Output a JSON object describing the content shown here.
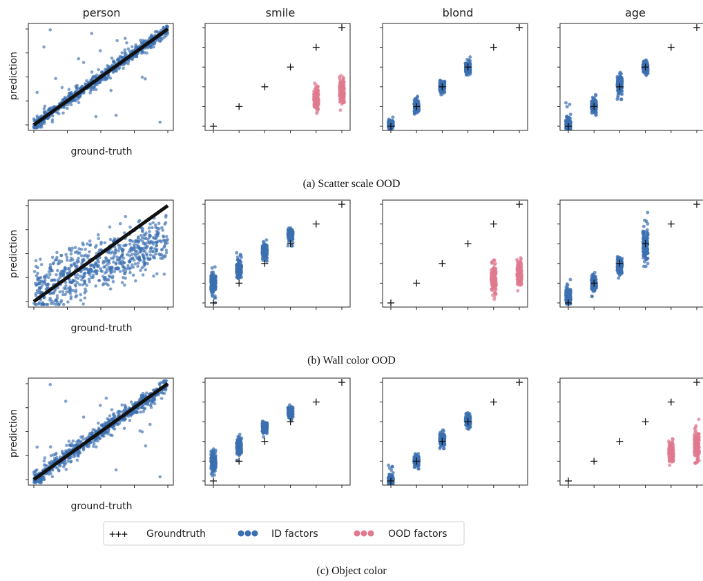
{
  "figure": {
    "column_titles": [
      "person",
      "smile",
      "blond",
      "age"
    ],
    "ylabel": "prediction",
    "xlabel": "ground-truth",
    "legend": [
      {
        "marker": "+++",
        "label": "Groundtruth",
        "color": "#111111"
      },
      {
        "marker": "dots",
        "label": "ID factors",
        "color": "#3a6fb0"
      },
      {
        "marker": "dots",
        "label": "OOD factors",
        "color": "#e0798f"
      }
    ],
    "colors": {
      "id": "#3a6fb0",
      "ood": "#e0798f",
      "groundtruth": "#111111"
    }
  },
  "chart_data": [
    {
      "type": "scatter",
      "caption": "(a) Scatter scale OOD",
      "panels": [
        {
          "title": "person",
          "kind": "continuous",
          "x_range": [
            0,
            1
          ],
          "y_range": [
            0,
            1
          ],
          "spread": "tight",
          "outliers": true
        },
        {
          "title": "smile",
          "kind": "discrete",
          "levels": [
            0,
            1,
            2,
            3,
            4,
            5
          ],
          "groundtruth": [
            0,
            1,
            2,
            3,
            4,
            5
          ],
          "clusters": [
            {
              "x": 4,
              "center": 1.4,
              "min": 0.65,
              "max": 2.6,
              "group": "ood"
            },
            {
              "x": 5,
              "center": 1.8,
              "min": 0.7,
              "max": 2.8,
              "group": "ood"
            }
          ]
        },
        {
          "title": "blond",
          "kind": "discrete",
          "levels": [
            0,
            1,
            2,
            3,
            4,
            5
          ],
          "groundtruth": [
            0,
            1,
            2,
            3,
            4,
            5
          ],
          "clusters": [
            {
              "x": 0,
              "center": 0.1,
              "min": -0.2,
              "max": 0.6,
              "group": "id"
            },
            {
              "x": 1,
              "center": 1.05,
              "min": 0.6,
              "max": 1.8,
              "group": "id"
            },
            {
              "x": 2,
              "center": 2.0,
              "min": 1.6,
              "max": 2.7,
              "group": "id"
            },
            {
              "x": 3,
              "center": 2.95,
              "min": 2.6,
              "max": 3.65,
              "group": "id"
            }
          ]
        },
        {
          "title": "age",
          "kind": "discrete",
          "levels": [
            0,
            1,
            2,
            3,
            4,
            5
          ],
          "groundtruth": [
            0,
            1,
            2,
            3,
            4,
            5
          ],
          "clusters": [
            {
              "x": 0,
              "center": 0.1,
              "min": -0.2,
              "max": 1.2,
              "group": "id"
            },
            {
              "x": 1,
              "center": 1.05,
              "min": 0.55,
              "max": 1.7,
              "group": "id"
            },
            {
              "x": 2,
              "center": 2.1,
              "min": 1.3,
              "max": 2.9,
              "group": "id"
            },
            {
              "x": 3,
              "center": 2.95,
              "min": 2.55,
              "max": 3.5,
              "group": "id"
            }
          ]
        }
      ]
    },
    {
      "type": "scatter",
      "caption": "(b) Wall color OOD",
      "panels": [
        {
          "title": "person",
          "kind": "continuous",
          "x_range": [
            0,
            1
          ],
          "y_range": [
            0,
            1
          ],
          "spread": "wide",
          "outliers": true
        },
        {
          "title": "smile",
          "kind": "discrete",
          "levels": [
            0,
            1,
            2,
            3,
            4,
            5
          ],
          "groundtruth": [
            0,
            1,
            2,
            3,
            4,
            5
          ],
          "clusters": [
            {
              "x": 0,
              "center": 1.0,
              "min": -0.1,
              "max": 1.9,
              "group": "id"
            },
            {
              "x": 1,
              "center": 1.75,
              "min": 1.0,
              "max": 2.55,
              "group": "id"
            },
            {
              "x": 2,
              "center": 2.65,
              "min": 2.1,
              "max": 3.35,
              "group": "id"
            },
            {
              "x": 3,
              "center": 3.45,
              "min": 2.85,
              "max": 3.85,
              "group": "id"
            }
          ]
        },
        {
          "title": "blond",
          "kind": "discrete",
          "levels": [
            0,
            1,
            2,
            3,
            4,
            5
          ],
          "groundtruth": [
            0,
            1,
            2,
            3,
            4,
            5
          ],
          "clusters": [
            {
              "x": 4,
              "center": 1.2,
              "min": 0.0,
              "max": 2.6,
              "group": "ood"
            },
            {
              "x": 5,
              "center": 1.5,
              "min": 0.5,
              "max": 2.6,
              "group": "ood"
            }
          ]
        },
        {
          "title": "age",
          "kind": "discrete",
          "levels": [
            0,
            1,
            2,
            3,
            4,
            5
          ],
          "groundtruth": [
            0,
            1,
            2,
            3,
            4,
            5
          ],
          "clusters": [
            {
              "x": 0,
              "center": 0.35,
              "min": -0.05,
              "max": 1.45,
              "group": "id"
            },
            {
              "x": 1,
              "center": 1.05,
              "min": 0.3,
              "max": 1.65,
              "group": "id"
            },
            {
              "x": 2,
              "center": 1.9,
              "min": 1.0,
              "max": 2.5,
              "group": "id"
            },
            {
              "x": 3,
              "center": 2.9,
              "min": 1.85,
              "max": 5.0,
              "group": "id"
            }
          ]
        }
      ]
    },
    {
      "type": "scatter",
      "caption": "(c) Object color",
      "panels": [
        {
          "title": "person",
          "kind": "continuous",
          "x_range": [
            0,
            1
          ],
          "y_range": [
            0,
            1
          ],
          "spread": "medium",
          "outliers": true
        },
        {
          "title": "smile",
          "kind": "discrete",
          "levels": [
            0,
            1,
            2,
            3,
            4,
            5
          ],
          "groundtruth": [
            0,
            1,
            2,
            3,
            4,
            5
          ],
          "clusters": [
            {
              "x": 0,
              "center": 1.0,
              "min": 0.1,
              "max": 1.8,
              "group": "id"
            },
            {
              "x": 1,
              "center": 1.8,
              "min": 1.0,
              "max": 2.55,
              "group": "id"
            },
            {
              "x": 2,
              "center": 2.7,
              "min": 2.2,
              "max": 3.3,
              "group": "id"
            },
            {
              "x": 3,
              "center": 3.5,
              "min": 2.95,
              "max": 3.85,
              "group": "id"
            }
          ]
        },
        {
          "title": "blond",
          "kind": "discrete",
          "levels": [
            0,
            1,
            2,
            3,
            4,
            5
          ],
          "groundtruth": [
            0,
            1,
            2,
            3,
            4,
            5
          ],
          "clusters": [
            {
              "x": 0,
              "center": 0.05,
              "min": -0.2,
              "max": 0.8,
              "group": "id"
            },
            {
              "x": 1,
              "center": 1.05,
              "min": 0.6,
              "max": 1.5,
              "group": "id"
            },
            {
              "x": 2,
              "center": 2.1,
              "min": 1.6,
              "max": 2.7,
              "group": "id"
            },
            {
              "x": 3,
              "center": 3.05,
              "min": 2.5,
              "max": 3.6,
              "group": "id"
            }
          ]
        },
        {
          "title": "age",
          "kind": "discrete",
          "levels": [
            0,
            1,
            2,
            3,
            4,
            5
          ],
          "groundtruth": [
            0,
            1,
            2,
            3,
            4,
            5
          ],
          "clusters": [
            {
              "x": 4,
              "center": 1.45,
              "min": 0.7,
              "max": 2.4,
              "group": "ood"
            },
            {
              "x": 5,
              "center": 1.8,
              "min": 0.9,
              "max": 3.6,
              "group": "ood"
            }
          ]
        }
      ]
    }
  ]
}
